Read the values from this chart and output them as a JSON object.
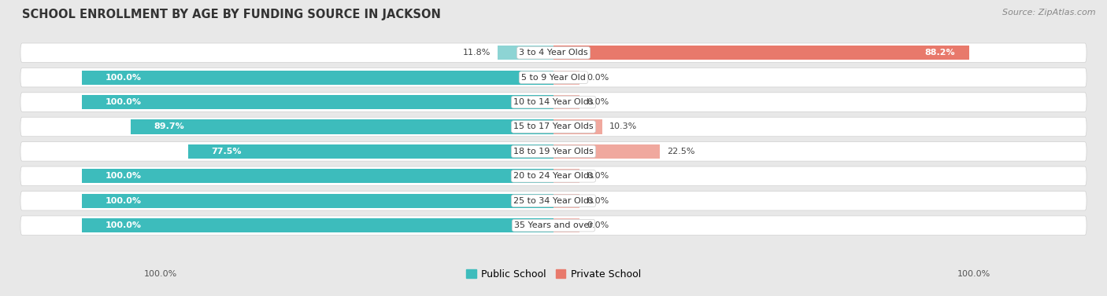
{
  "title": "SCHOOL ENROLLMENT BY AGE BY FUNDING SOURCE IN JACKSON",
  "source": "Source: ZipAtlas.com",
  "categories": [
    "3 to 4 Year Olds",
    "5 to 9 Year Old",
    "10 to 14 Year Olds",
    "15 to 17 Year Olds",
    "18 to 19 Year Olds",
    "20 to 24 Year Olds",
    "25 to 34 Year Olds",
    "35 Years and over"
  ],
  "public_values": [
    11.8,
    100.0,
    100.0,
    89.7,
    77.5,
    100.0,
    100.0,
    100.0
  ],
  "private_values": [
    88.2,
    0.0,
    0.0,
    10.3,
    22.5,
    0.0,
    0.0,
    0.0
  ],
  "public_color": "#3dbcbc",
  "private_color": "#e8796b",
  "public_color_light": "#8dd4d4",
  "private_color_light": "#f0a89e",
  "private_stub_color": "#f0b8b2",
  "fig_bg_color": "#e8e8e8",
  "row_bg_color": "#f0f0f0",
  "row_border_color": "#d8d8d8",
  "title_fontsize": 10.5,
  "source_fontsize": 8,
  "label_fontsize": 8,
  "value_fontsize": 8,
  "legend_labels": [
    "Public School",
    "Private School"
  ],
  "x_axis_label_left": "100.0%",
  "x_axis_label_right": "100.0%"
}
